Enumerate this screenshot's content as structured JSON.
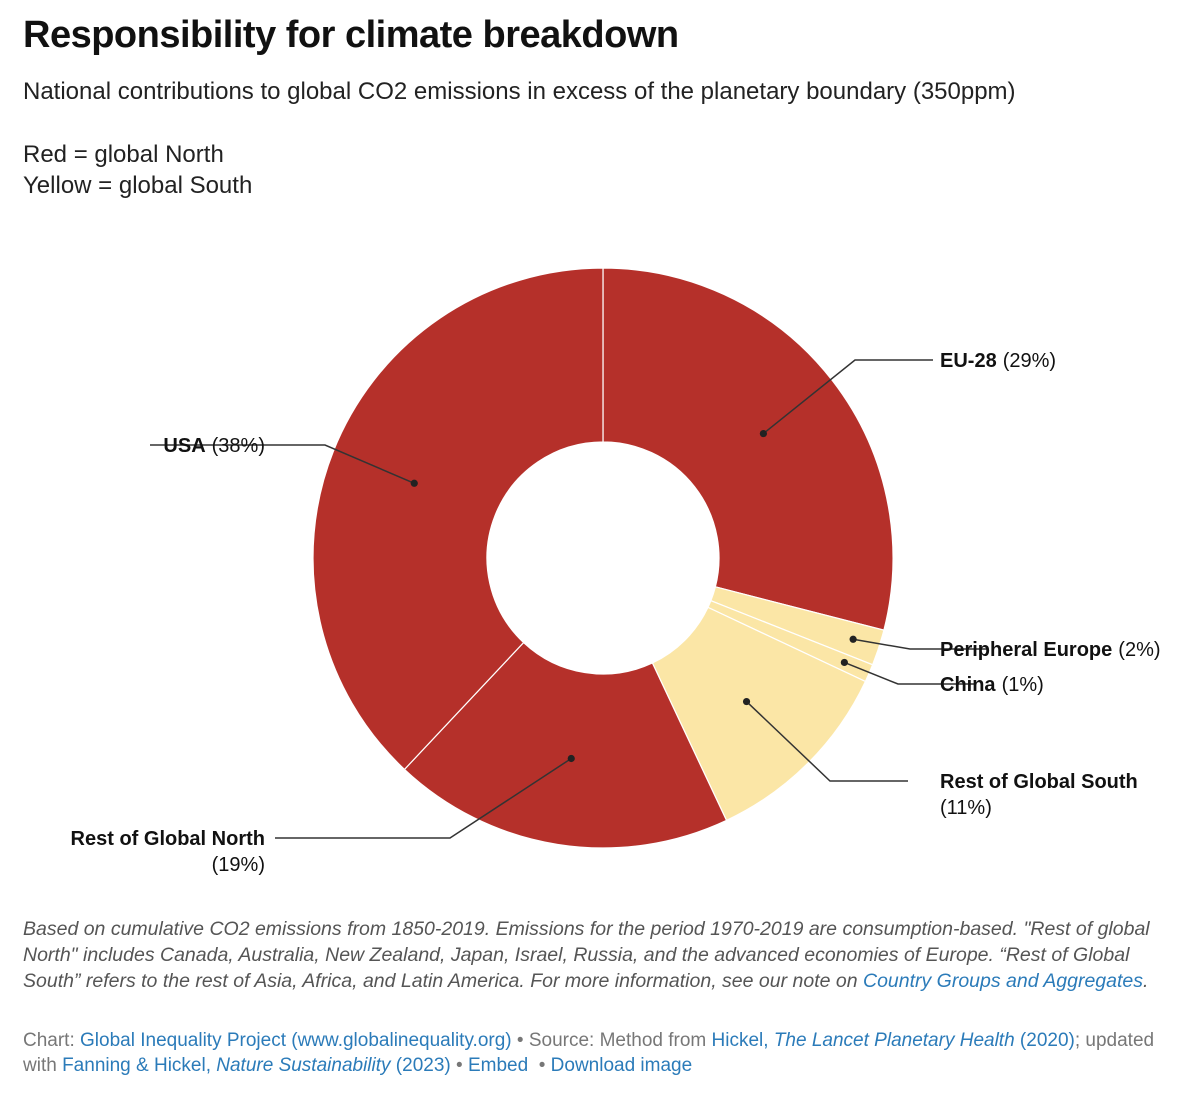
{
  "title": "Responsibility for climate breakdown",
  "subtitle": "National contributions to global CO2 emissions in excess of the planetary boundary (350ppm)",
  "legend": {
    "red": "Red = global North",
    "yellow": "Yellow = global South"
  },
  "colors": {
    "north": "#b5302a",
    "south": "#fbe6a6",
    "divider": "#ffffff",
    "leader": "#333333",
    "link": "#2b7bb9"
  },
  "chart_data": {
    "type": "pie",
    "variant": "donut",
    "title": "Responsibility for climate breakdown",
    "slices": [
      {
        "name": "EU-28",
        "pct_label": "(29%)",
        "value": 29,
        "group": "north"
      },
      {
        "name": "Peripheral Europe",
        "pct_label": "(2%)",
        "value": 2,
        "group": "south"
      },
      {
        "name": "China",
        "pct_label": "(1%)",
        "value": 1,
        "group": "south"
      },
      {
        "name": "Rest of Global South",
        "pct_label": "(11%)",
        "value": 11,
        "group": "south"
      },
      {
        "name": "Rest of Global North",
        "pct_label": "(19%)",
        "value": 19,
        "group": "north"
      },
      {
        "name": "USA",
        "pct_label": "(38%)",
        "value": 38,
        "group": "north"
      }
    ]
  },
  "notes": {
    "text": "Based on cumulative CO2 emissions from 1850-2019. Emissions for the period 1970-2019 are consumption-based. \"Rest of global North\" includes Canada, Australia, New Zealand, Japan, Israel, Russia, and the advanced economies of Europe. “Rest of Global South” refers to the rest of Asia, Africa, and Latin America. For more information, see our note on ",
    "link": "Country Groups and Aggregates",
    "end": "."
  },
  "credits": {
    "chart_prefix": "Chart: ",
    "chart_link": "Global Inequality Project (www.globalinequality.org)",
    "source_prefix": " • Source: Method from ",
    "source_author": "Hickel, ",
    "source_journal": "The Lancet Planetary Health",
    "source_year": " (2020)",
    "updated_prefix": "; updated with ",
    "updated_author": "Fanning & Hickel, ",
    "updated_journal": "Nature Sustainability",
    "updated_year": " (2023)",
    "embed": "Embed",
    "download": "Download image"
  }
}
